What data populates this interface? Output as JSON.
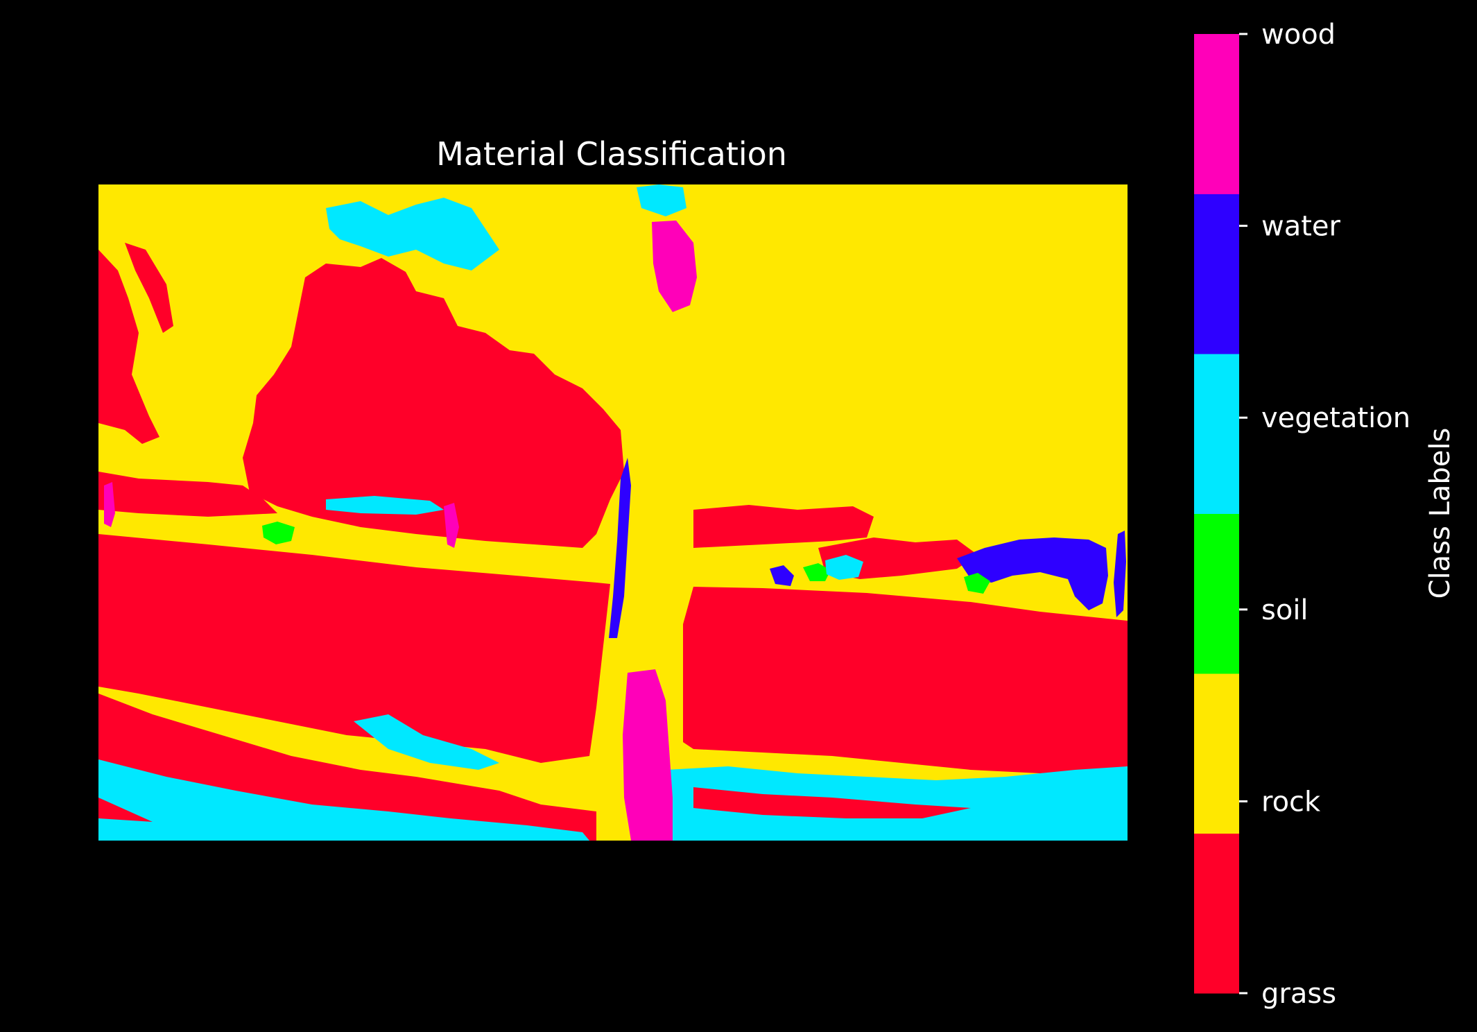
{
  "chart_data": {
    "type": "heatmap",
    "title": "Material Classification",
    "colorbar": {
      "label": "Class Labels",
      "classes": [
        {
          "name": "grass",
          "color": "#ff0029"
        },
        {
          "name": "rock",
          "color": "#ffe800"
        },
        {
          "name": "soil",
          "color": "#00ff00"
        },
        {
          "name": "vegetation",
          "color": "#00e8ff"
        },
        {
          "name": "water",
          "color": "#2e00ff"
        },
        {
          "name": "wood",
          "color": "#ff00b9"
        }
      ]
    },
    "axes_visible": false,
    "grid": false,
    "background": "#000000"
  }
}
